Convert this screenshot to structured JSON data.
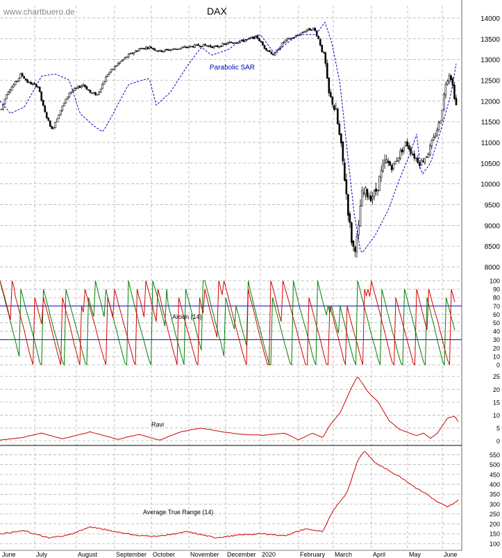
{
  "header": {
    "watermark": "www.chartbuero.de",
    "title": "DAX"
  },
  "chart_data": [
    {
      "type": "candlestick",
      "name": "DAX",
      "yticks": [
        8000,
        8500,
        9000,
        9500,
        10000,
        10500,
        11000,
        11500,
        12000,
        12500,
        13000,
        13500,
        14000
      ],
      "ylim": [
        7900,
        14300
      ],
      "annotation": "Parabolic SAR",
      "price_keyframes": [
        [
          0,
          11700
        ],
        [
          10,
          12200
        ],
        [
          25,
          12500
        ],
        [
          30,
          12650
        ],
        [
          40,
          12450
        ],
        [
          55,
          12350
        ],
        [
          60,
          12000
        ],
        [
          65,
          11700
        ],
        [
          75,
          11300
        ],
        [
          85,
          11700
        ],
        [
          100,
          12200
        ],
        [
          120,
          12400
        ],
        [
          130,
          12200
        ],
        [
          140,
          12150
        ],
        [
          155,
          12650
        ],
        [
          170,
          12900
        ],
        [
          185,
          13100
        ],
        [
          200,
          13250
        ],
        [
          215,
          13300
        ],
        [
          230,
          13200
        ],
        [
          250,
          13250
        ],
        [
          270,
          13300
        ],
        [
          290,
          13350
        ],
        [
          310,
          13300
        ],
        [
          330,
          13400
        ],
        [
          350,
          13450
        ],
        [
          370,
          13550
        ],
        [
          380,
          13300
        ],
        [
          395,
          13100
        ],
        [
          400,
          13250
        ],
        [
          410,
          13450
        ],
        [
          425,
          13550
        ],
        [
          440,
          13700
        ],
        [
          452,
          13750
        ],
        [
          460,
          13450
        ],
        [
          468,
          13000
        ],
        [
          473,
          12200
        ],
        [
          478,
          12000
        ],
        [
          484,
          11700
        ],
        [
          492,
          10800
        ],
        [
          498,
          9900
        ],
        [
          503,
          9100
        ],
        [
          508,
          8450
        ],
        [
          512,
          8500
        ],
        [
          516,
          8800
        ],
        [
          520,
          9700
        ],
        [
          526,
          9800
        ],
        [
          533,
          9700
        ],
        [
          540,
          9750
        ],
        [
          548,
          10200
        ],
        [
          555,
          10550
        ],
        [
          565,
          10400
        ],
        [
          575,
          10700
        ],
        [
          585,
          11000
        ],
        [
          595,
          10700
        ],
        [
          605,
          10500
        ],
        [
          615,
          10700
        ],
        [
          625,
          11100
        ],
        [
          635,
          11600
        ],
        [
          642,
          12450
        ],
        [
          648,
          12700
        ],
        [
          652,
          12350
        ],
        [
          657,
          11900
        ]
      ]
    },
    {
      "type": "line",
      "name": "Aroon (14)",
      "yticks": [
        0,
        10,
        20,
        30,
        40,
        50,
        60,
        70,
        80,
        90,
        100
      ],
      "ylim": [
        0,
        100
      ],
      "levels": [
        30,
        70
      ]
    },
    {
      "type": "line",
      "name": "Ravi",
      "yticks": [
        0,
        5,
        10,
        15,
        20,
        25
      ],
      "ylim": [
        -1.5,
        26
      ],
      "keyframes": [
        [
          0,
          0.3
        ],
        [
          30,
          1.2
        ],
        [
          60,
          3
        ],
        [
          90,
          0.8
        ],
        [
          130,
          3.5
        ],
        [
          170,
          0.6
        ],
        [
          200,
          2.5
        ],
        [
          230,
          0.3
        ],
        [
          260,
          3.5
        ],
        [
          290,
          5
        ],
        [
          320,
          3.5
        ],
        [
          350,
          2.5
        ],
        [
          380,
          2.2
        ],
        [
          410,
          3
        ],
        [
          430,
          0.4
        ],
        [
          450,
          3
        ],
        [
          465,
          1.3
        ],
        [
          475,
          6
        ],
        [
          490,
          11
        ],
        [
          505,
          20
        ],
        [
          515,
          25
        ],
        [
          530,
          19
        ],
        [
          545,
          15
        ],
        [
          560,
          8
        ],
        [
          575,
          4.5
        ],
        [
          590,
          3
        ],
        [
          600,
          2
        ],
        [
          610,
          3
        ],
        [
          620,
          1
        ],
        [
          630,
          3
        ],
        [
          645,
          9
        ],
        [
          655,
          9.5
        ],
        [
          660,
          7.5
        ]
      ]
    },
    {
      "type": "line",
      "name": "Average True Range (14)",
      "yticks": [
        100,
        150,
        200,
        250,
        300,
        350,
        400,
        450,
        500,
        550
      ],
      "ylim": [
        80,
        590
      ],
      "keyframes": [
        [
          0,
          150
        ],
        [
          35,
          165
        ],
        [
          70,
          128
        ],
        [
          100,
          145
        ],
        [
          130,
          185
        ],
        [
          160,
          165
        ],
        [
          200,
          140
        ],
        [
          230,
          138
        ],
        [
          270,
          160
        ],
        [
          310,
          130
        ],
        [
          350,
          145
        ],
        [
          380,
          150
        ],
        [
          410,
          140
        ],
        [
          440,
          175
        ],
        [
          465,
          160
        ],
        [
          480,
          270
        ],
        [
          500,
          360
        ],
        [
          515,
          520
        ],
        [
          525,
          570
        ],
        [
          540,
          510
        ],
        [
          560,
          470
        ],
        [
          580,
          430
        ],
        [
          600,
          380
        ],
        [
          615,
          350
        ],
        [
          630,
          310
        ],
        [
          645,
          285
        ],
        [
          660,
          320
        ]
      ]
    }
  ],
  "xaxis": {
    "labels": [
      "June",
      "July",
      "August",
      "September",
      "October",
      "November",
      "December",
      "2020",
      "February",
      "March",
      "April",
      "May",
      "June"
    ]
  },
  "colors": {
    "background": "#ffffff",
    "grid": "#a8a8a8",
    "candle": "#000000",
    "sar": "#0000c8",
    "aroon_up": "#008000",
    "aroon_down": "#d40000",
    "level_line": "#0000c8",
    "ravi": "#cc0000",
    "atr": "#cc0000",
    "sar_label": "#0000c8"
  }
}
